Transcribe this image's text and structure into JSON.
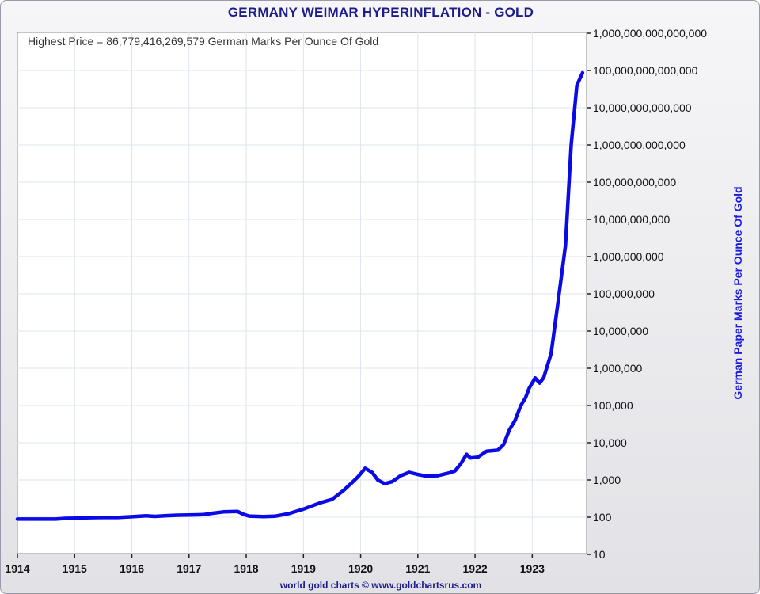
{
  "chart_data": {
    "type": "line",
    "title": "GERMANY WEIMAR HYPERINFLATION - GOLD",
    "annotation": "Highest Price = 86,779,416,269,579 German Marks Per Ounce Of Gold",
    "xlabel": "",
    "ylabel": "German Paper Marks Per Ounce Of Gold",
    "y_scale": "log",
    "ylim": [
      10,
      1000000000000000
    ],
    "xlim": [
      1914,
      1923.95
    ],
    "y_ticks": [
      {
        "value": 10,
        "label": "10"
      },
      {
        "value": 100,
        "label": "100"
      },
      {
        "value": 1000,
        "label": "1,000"
      },
      {
        "value": 10000,
        "label": "10,000"
      },
      {
        "value": 100000,
        "label": "100,000"
      },
      {
        "value": 1000000,
        "label": "1,000,000"
      },
      {
        "value": 10000000,
        "label": "10,000,000"
      },
      {
        "value": 100000000,
        "label": "100,000,000"
      },
      {
        "value": 1000000000,
        "label": "1,000,000,000"
      },
      {
        "value": 10000000000,
        "label": "10,000,000,000"
      },
      {
        "value": 100000000000,
        "label": "100,000,000,000"
      },
      {
        "value": 1000000000000,
        "label": "1,000,000,000,000"
      },
      {
        "value": 10000000000000,
        "label": "10,000,000,000,000"
      },
      {
        "value": 100000000000000,
        "label": "100,000,000,000,000"
      },
      {
        "value": 1000000000000000,
        "label": "1,000,000,000,000,000"
      }
    ],
    "x_ticks": [
      {
        "value": 1914,
        "label": "1914"
      },
      {
        "value": 1915,
        "label": "1915"
      },
      {
        "value": 1916,
        "label": "1916"
      },
      {
        "value": 1917,
        "label": "1917"
      },
      {
        "value": 1918,
        "label": "1918"
      },
      {
        "value": 1919,
        "label": "1919"
      },
      {
        "value": 1920,
        "label": "1920"
      },
      {
        "value": 1921,
        "label": "1921"
      },
      {
        "value": 1922,
        "label": "1922"
      },
      {
        "value": 1923,
        "label": "1923"
      }
    ],
    "grid": true,
    "line_color": "#0a0ae6",
    "series": [
      {
        "name": "",
        "points": [
          [
            1914.0,
            89
          ],
          [
            1914.33,
            89
          ],
          [
            1914.67,
            89
          ],
          [
            1914.83,
            93
          ],
          [
            1915.0,
            94
          ],
          [
            1915.25,
            97
          ],
          [
            1915.5,
            98
          ],
          [
            1915.75,
            98
          ],
          [
            1916.0,
            103
          ],
          [
            1916.25,
            109
          ],
          [
            1916.4,
            105
          ],
          [
            1916.6,
            110
          ],
          [
            1916.8,
            113
          ],
          [
            1917.0,
            114
          ],
          [
            1917.25,
            117
          ],
          [
            1917.4,
            127
          ],
          [
            1917.6,
            139
          ],
          [
            1917.85,
            142
          ],
          [
            1917.95,
            120
          ],
          [
            1918.05,
            107
          ],
          [
            1918.3,
            104
          ],
          [
            1918.5,
            106
          ],
          [
            1918.75,
            125
          ],
          [
            1919.0,
            165
          ],
          [
            1919.3,
            245
          ],
          [
            1919.5,
            300
          ],
          [
            1919.7,
            520
          ],
          [
            1919.85,
            850
          ],
          [
            1919.95,
            1200
          ],
          [
            1920.08,
            2050
          ],
          [
            1920.2,
            1600
          ],
          [
            1920.3,
            1000
          ],
          [
            1920.42,
            800
          ],
          [
            1920.55,
            900
          ],
          [
            1920.7,
            1300
          ],
          [
            1920.85,
            1600
          ],
          [
            1921.0,
            1400
          ],
          [
            1921.15,
            1270
          ],
          [
            1921.35,
            1300
          ],
          [
            1921.55,
            1550
          ],
          [
            1921.65,
            1750
          ],
          [
            1921.75,
            2700
          ],
          [
            1921.85,
            4900
          ],
          [
            1921.92,
            3900
          ],
          [
            1922.05,
            4100
          ],
          [
            1922.2,
            5900
          ],
          [
            1922.4,
            6300
          ],
          [
            1922.5,
            9000
          ],
          [
            1922.6,
            22000
          ],
          [
            1922.7,
            40000
          ],
          [
            1922.8,
            100000
          ],
          [
            1922.88,
            160000
          ],
          [
            1922.95,
            300000
          ],
          [
            1923.05,
            550000
          ],
          [
            1923.13,
            400000
          ],
          [
            1923.2,
            560000
          ],
          [
            1923.33,
            2500000
          ],
          [
            1923.45,
            60000000
          ],
          [
            1923.58,
            2000000000
          ],
          [
            1923.68,
            1000000000000
          ],
          [
            1923.78,
            40000000000000
          ],
          [
            1923.88,
            86779416269579
          ]
        ]
      }
    ],
    "watermark": "world gold charts © www.goldchartsrus.com"
  }
}
